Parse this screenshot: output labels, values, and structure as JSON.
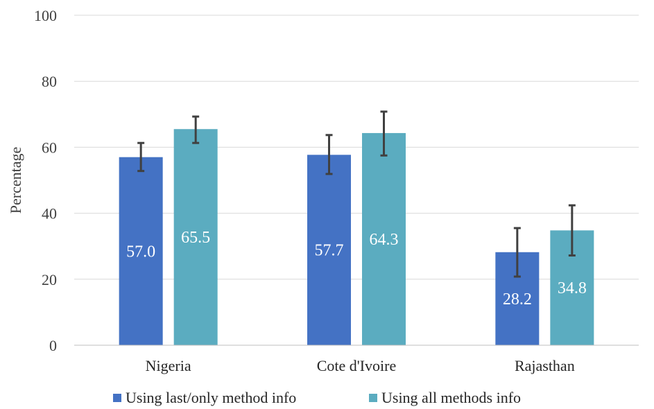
{
  "chart_data": {
    "type": "bar",
    "title": "",
    "xlabel": "",
    "ylabel": "Percentage",
    "ylim": [
      0,
      100
    ],
    "yticks": [
      0,
      20,
      40,
      60,
      80,
      100
    ],
    "grid": true,
    "legend_position": "bottom",
    "categories": [
      "Nigeria",
      "Cote d'Ivoire",
      "Rajasthan"
    ],
    "series": [
      {
        "name": "Using last/only method info",
        "color": "#4472C4",
        "values": [
          57.0,
          57.7,
          28.2
        ],
        "labels": [
          "57.0",
          "57.7",
          "28.2"
        ],
        "error_low": [
          52.8,
          51.9,
          20.8
        ],
        "error_high": [
          61.3,
          63.7,
          35.5
        ]
      },
      {
        "name": "Using all methods info",
        "color": "#5BACC0",
        "values": [
          65.5,
          64.3,
          34.8
        ],
        "labels": [
          "65.5",
          "64.3",
          "34.8"
        ],
        "error_low": [
          61.3,
          57.5,
          27.2
        ],
        "error_high": [
          69.3,
          70.8,
          42.4
        ]
      }
    ]
  }
}
